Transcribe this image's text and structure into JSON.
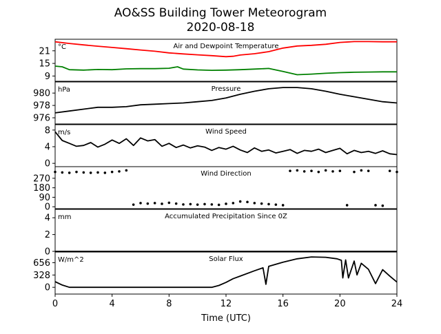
{
  "figure": {
    "title": "AO&SS Building Tower Meteorogram",
    "subtitle": "2020-08-18",
    "xlabel": "Time (UTC)",
    "x_ticks": [
      0,
      4,
      8,
      12,
      16,
      20,
      24
    ],
    "x_ticklabels": [
      "0",
      "4",
      "8",
      "12",
      "16",
      "20",
      "24"
    ]
  },
  "chart_data": [
    {
      "type": "line",
      "title": "Air and Dewpoint Temperature",
      "ylabel": "°C",
      "ylim": [
        6.5,
        26.5
      ],
      "yticks": [
        9,
        15,
        21
      ],
      "xlim": [
        0,
        24
      ],
      "series": [
        {
          "color": "#ff0000",
          "x": [
            0,
            1,
            2,
            3,
            4,
            5,
            6,
            7,
            8,
            9,
            10,
            11,
            12,
            12.5,
            13,
            14,
            15,
            16,
            17,
            18,
            19,
            20,
            21,
            22,
            23,
            24
          ],
          "y": [
            25.3,
            24.5,
            23.8,
            23.2,
            22.6,
            22.0,
            21.4,
            20.8,
            20.0,
            19.5,
            19.1,
            18.7,
            18.2,
            18.4,
            19.0,
            19.6,
            20.6,
            22.3,
            23.3,
            23.6,
            24.1,
            25.0,
            25.4,
            25.4,
            25.3,
            25.3
          ]
        },
        {
          "color": "#008000",
          "x": [
            0,
            0.5,
            1,
            2,
            3,
            4,
            5,
            6,
            7,
            8,
            8.6,
            9,
            10,
            11,
            12,
            13,
            14,
            15,
            16,
            17,
            18,
            19,
            20,
            21,
            22,
            23,
            24
          ],
          "y": [
            13.7,
            13.4,
            12.0,
            11.8,
            12.1,
            12.0,
            12.4,
            12.5,
            12.5,
            12.7,
            13.4,
            12.3,
            11.9,
            11.7,
            11.8,
            12.0,
            12.3,
            12.6,
            11.2,
            9.6,
            9.9,
            10.3,
            10.6,
            10.8,
            10.9,
            11.0,
            11.0
          ]
        }
      ]
    },
    {
      "type": "line",
      "title": "Pressure",
      "ylabel": "hPa",
      "ylim": [
        975,
        981.8
      ],
      "yticks": [
        976,
        978,
        980
      ],
      "xlim": [
        0,
        24
      ],
      "series": [
        {
          "color": "#000000",
          "x": [
            0,
            1,
            2,
            3,
            4,
            5,
            6,
            7,
            8,
            9,
            10,
            11,
            12,
            13,
            14,
            15,
            16,
            17,
            18,
            19,
            20,
            21,
            22,
            23,
            24
          ],
          "y": [
            976.8,
            977.1,
            977.4,
            977.7,
            977.7,
            977.8,
            978.1,
            978.2,
            978.3,
            978.4,
            978.6,
            978.8,
            979.2,
            979.8,
            980.3,
            980.7,
            980.9,
            980.9,
            980.7,
            980.3,
            979.8,
            979.4,
            979.0,
            978.6,
            978.4
          ]
        }
      ]
    },
    {
      "type": "line",
      "title": "Wind Speed",
      "ylabel": "m/s",
      "ylim": [
        -0.8,
        9.3
      ],
      "yticks": [
        0,
        4,
        8
      ],
      "xlim": [
        0,
        24
      ],
      "series": [
        {
          "color": "#000000",
          "x": [
            0,
            0.5,
            1,
            1.5,
            2,
            2.5,
            3,
            3.5,
            4,
            4.5,
            5,
            5.5,
            6,
            6.5,
            7,
            7.5,
            8,
            8.5,
            9,
            9.5,
            10,
            10.5,
            11,
            11.5,
            12,
            12.5,
            13,
            13.5,
            14,
            14.5,
            15,
            15.5,
            16,
            16.5,
            17,
            17.5,
            18,
            18.5,
            19,
            19.5,
            20,
            20.5,
            21,
            21.5,
            22,
            22.5,
            23,
            23.5,
            24
          ],
          "y": [
            7.6,
            5.5,
            4.8,
            4.1,
            4.3,
            5.0,
            3.9,
            4.6,
            5.6,
            4.8,
            5.9,
            4.3,
            6.1,
            5.4,
            5.7,
            4.1,
            4.8,
            3.8,
            4.4,
            3.7,
            4.2,
            3.9,
            3.1,
            3.8,
            3.4,
            4.1,
            3.2,
            2.6,
            3.7,
            2.9,
            3.2,
            2.5,
            2.9,
            3.3,
            2.4,
            3.1,
            2.9,
            3.4,
            2.6,
            3.1,
            3.6,
            2.3,
            3.1,
            2.6,
            2.9,
            2.4,
            3.0,
            2.3,
            2.1
          ]
        }
      ]
    },
    {
      "type": "scatter",
      "title": "Wind Direction",
      "ylabel": "",
      "ylim": [
        -18,
        380
      ],
      "yticks": [
        0,
        90,
        180,
        270
      ],
      "xlim": [
        0,
        24
      ],
      "series": [
        {
          "color": "#000000",
          "x": [
            0,
            0.5,
            1,
            1.5,
            2,
            2.5,
            3,
            3.5,
            4,
            4.5,
            5,
            5.5,
            6,
            6.5,
            7,
            7.5,
            8,
            8.5,
            9,
            9.5,
            10,
            10.5,
            11,
            11.5,
            12,
            12.5,
            13,
            13.5,
            14,
            14.5,
            15,
            15.5,
            16,
            16.5,
            17,
            17.5,
            18,
            18.5,
            19,
            19.5,
            20,
            20.5,
            21,
            21.5,
            22,
            22.5,
            23,
            23.5,
            24
          ],
          "y": [
            330,
            325,
            322,
            330,
            325,
            322,
            325,
            322,
            330,
            335,
            345,
            20,
            35,
            30,
            35,
            28,
            38,
            30,
            22,
            25,
            20,
            25,
            22,
            18,
            28,
            35,
            50,
            45,
            35,
            30,
            25,
            20,
            15,
            340,
            345,
            335,
            340,
            330,
            345,
            335,
            340,
            15,
            330,
            345,
            340,
            15,
            10,
            340,
            330
          ]
        }
      ]
    },
    {
      "type": "line",
      "title": "Accumulated Precipitation Since 0Z",
      "ylabel": "mm",
      "ylim": [
        0,
        5
      ],
      "yticks": [
        0,
        2,
        4
      ],
      "xlim": [
        0,
        24
      ],
      "series": [
        {
          "color": "#000000",
          "x": [
            0,
            24
          ],
          "y": [
            0,
            0
          ]
        }
      ]
    },
    {
      "type": "line",
      "title": "Solar Flux",
      "ylabel": "W/m^2",
      "ylim": [
        -180,
        940
      ],
      "yticks": [
        0,
        328,
        656
      ],
      "xlim": [
        0,
        24
      ],
      "series": [
        {
          "color": "#000000",
          "x": [
            0,
            0.5,
            1,
            2,
            3,
            4,
            5,
            6,
            7,
            8,
            9,
            10,
            11,
            11.5,
            12,
            12.5,
            13,
            14,
            14.6,
            14.8,
            15,
            16,
            17,
            18,
            19,
            19.8,
            20.1,
            20.2,
            20.4,
            20.6,
            21,
            21.2,
            21.5,
            22,
            22.5,
            23,
            23.5,
            24
          ],
          "y": [
            150,
            60,
            0,
            0,
            0,
            0,
            0,
            0,
            0,
            0,
            0,
            0,
            0,
            50,
            130,
            230,
            300,
            440,
            520,
            80,
            560,
            670,
            760,
            810,
            800,
            760,
            720,
            250,
            730,
            250,
            700,
            330,
            640,
            480,
            100,
            470,
            300,
            140
          ]
        }
      ]
    }
  ]
}
